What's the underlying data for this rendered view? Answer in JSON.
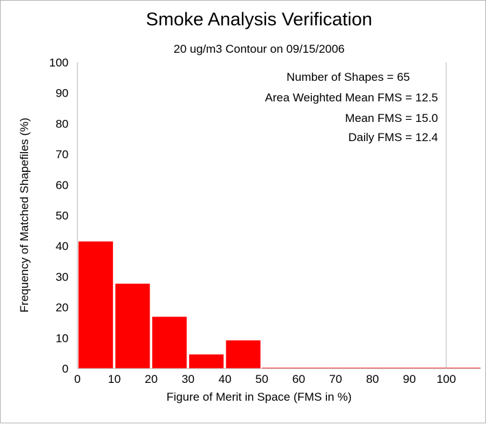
{
  "chart_data": {
    "type": "bar",
    "title": "Smoke Analysis Verification",
    "subtitle": "20 ug/m3 Contour on 09/15/2006",
    "xlabel": "Figure of Merit in Space (FMS in %)",
    "ylabel": "Frequency of Matched Shapefiles (%)",
    "xlim": [
      0,
      100
    ],
    "ylim": [
      0,
      100
    ],
    "xticks": [
      "0",
      "10",
      "20",
      "30",
      "40",
      "50",
      "60",
      "70",
      "80",
      "90",
      "100"
    ],
    "yticks": [
      "0",
      "10",
      "20",
      "30",
      "40",
      "50",
      "60",
      "70",
      "80",
      "90",
      "100"
    ],
    "bins": [
      {
        "start": 0,
        "end": 10,
        "value": 41.5
      },
      {
        "start": 10,
        "end": 20,
        "value": 27.7
      },
      {
        "start": 20,
        "end": 30,
        "value": 16.9
      },
      {
        "start": 30,
        "end": 40,
        "value": 4.6
      },
      {
        "start": 40,
        "end": 50,
        "value": 9.2
      },
      {
        "start": 50,
        "end": 60,
        "value": 0
      },
      {
        "start": 60,
        "end": 70,
        "value": 0
      },
      {
        "start": 70,
        "end": 80,
        "value": 0
      },
      {
        "start": 80,
        "end": 90,
        "value": 0
      },
      {
        "start": 90,
        "end": 100,
        "value": 0
      }
    ],
    "bar_color": "#ff0000",
    "grid": false,
    "annotations": [
      "Number of Shapes = 65",
      "Area Weighted Mean FMS = 12.5",
      "Mean FMS = 15.0",
      "Daily FMS = 12.4"
    ]
  }
}
